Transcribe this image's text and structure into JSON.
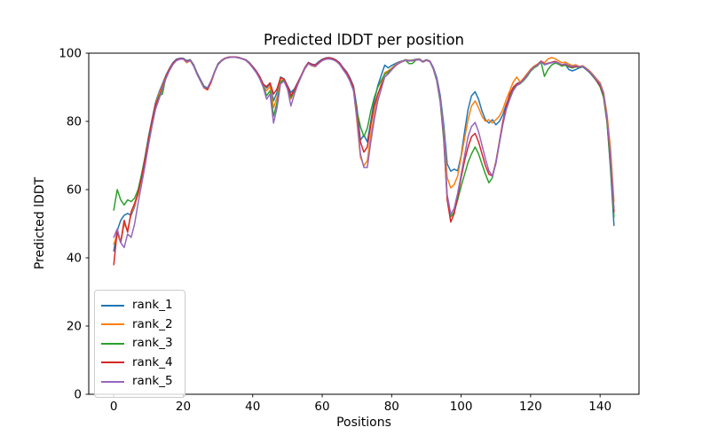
{
  "chart_data": {
    "type": "line",
    "title": "Predicted lDDT per position",
    "xlabel": "Positions",
    "ylabel": "Predicted lDDT",
    "xlim": [
      -7.2,
      151.2
    ],
    "ylim": [
      0,
      100
    ],
    "xticks": [
      0,
      20,
      40,
      60,
      80,
      100,
      120,
      140
    ],
    "yticks": [
      0,
      20,
      40,
      60,
      80,
      100
    ],
    "grid": false,
    "legend_position": "lower-left",
    "x_start": 0,
    "x_step": 1,
    "n_positions": 145,
    "series": [
      {
        "name": "rank_1",
        "color": "#1f77b4",
        "values": [
          42,
          48,
          51,
          52.5,
          53,
          52.5,
          55,
          59,
          64,
          69.5,
          75.5,
          80.5,
          85.5,
          88.5,
          91,
          93.5,
          95.5,
          97.2,
          98.2,
          98.5,
          98.5,
          97.8,
          98.1,
          96.6,
          94.2,
          92.2,
          90.3,
          89.8,
          91.8,
          94.6,
          96.9,
          97.9,
          98.5,
          98.8,
          98.9,
          98.9,
          98.7,
          98.4,
          98.1,
          97.3,
          96.1,
          94.8,
          93.2,
          91,
          89.8,
          91,
          86,
          88.5,
          93,
          92.5,
          90.5,
          88.5,
          89.5,
          91.5,
          93.5,
          95.8,
          97.3,
          96.8,
          96.6,
          97.5,
          98.2,
          98.6,
          98.7,
          98.5,
          98,
          97.2,
          95.8,
          94.6,
          92.8,
          90.3,
          84,
          74.5,
          76,
          74,
          80,
          86,
          90.5,
          93.5,
          96.5,
          95.7,
          96.4,
          96.9,
          97.4,
          97.7,
          98.1,
          97.9,
          98,
          98.2,
          98.3,
          97.6,
          98.1,
          97.7,
          95.8,
          92.8,
          87.5,
          79,
          67.5,
          65.4,
          66,
          65.5,
          70,
          77,
          83.5,
          87.5,
          88.7,
          86.5,
          83,
          80.5,
          79.5,
          80.5,
          79,
          80,
          82,
          85,
          87.5,
          89.5,
          91,
          91.5,
          92,
          93.2,
          94.8,
          95.8,
          96.4,
          97.5,
          96.6,
          96.9,
          97.2,
          97.5,
          97,
          96.4,
          96.7,
          95.2,
          94.8,
          95.2,
          95.7,
          96,
          95.2,
          94.3,
          93.1,
          91.8,
          90.2,
          87.5,
          80,
          66,
          49.5
        ]
      },
      {
        "name": "rank_2",
        "color": "#ff7f0e",
        "values": [
          44,
          47,
          44.5,
          50,
          48,
          53,
          55.5,
          58.5,
          63.5,
          69,
          75,
          80,
          85,
          88,
          90.5,
          93.2,
          95.3,
          97,
          98,
          98.3,
          98.2,
          97.2,
          97.8,
          96.2,
          93.8,
          91.8,
          89.8,
          89.2,
          91.4,
          94.3,
          96.6,
          97.7,
          98.4,
          98.7,
          98.8,
          98.8,
          98.6,
          98.3,
          97.9,
          97,
          95.8,
          94.4,
          92.7,
          90.4,
          89,
          90.3,
          84,
          87,
          92.2,
          92,
          89.8,
          86.5,
          88.8,
          91,
          93.3,
          95.5,
          96.9,
          96.3,
          96,
          97,
          97.9,
          98.3,
          98.4,
          98.2,
          97.7,
          96.8,
          95.3,
          94,
          92,
          89.5,
          80,
          69.5,
          67,
          68.5,
          76,
          82,
          87.5,
          91,
          94.3,
          94.8,
          95.6,
          96.5,
          97.2,
          97.6,
          98,
          97.8,
          97.9,
          98.1,
          98.2,
          97.5,
          98,
          97.6,
          95.5,
          92.2,
          86.5,
          77,
          63.5,
          60.5,
          61.5,
          64,
          69.5,
          75,
          80.5,
          84.5,
          86,
          84,
          81.5,
          80,
          80.5,
          79.5,
          80.5,
          81.5,
          83.5,
          86.5,
          89,
          91.5,
          93,
          91.5,
          92.7,
          94,
          95.3,
          96.2,
          96.8,
          97.6,
          97.2,
          98.3,
          98.7,
          98.4,
          97.8,
          97.2,
          97.4,
          96.8,
          96.4,
          96.6,
          96.1,
          96.3,
          95.6,
          94.8,
          93.7,
          92.5,
          91.3,
          88.5,
          82,
          72,
          56.5
        ]
      },
      {
        "name": "rank_3",
        "color": "#2ca02c",
        "values": [
          54,
          60,
          57,
          55.5,
          57,
          56.5,
          57.5,
          60,
          64.5,
          69.5,
          75,
          80,
          84.5,
          87.5,
          88,
          93,
          95,
          96.8,
          97.9,
          98.3,
          98.4,
          97.6,
          98,
          96.4,
          94,
          92,
          90.1,
          89.6,
          91.6,
          94.4,
          96.7,
          97.8,
          98.4,
          98.8,
          98.9,
          98.9,
          98.7,
          98.4,
          98,
          97.1,
          95.9,
          94.6,
          92.9,
          90.6,
          87.5,
          89,
          81.5,
          85.5,
          91.5,
          92.2,
          90,
          87,
          89,
          91.2,
          93.4,
          95.6,
          97.1,
          96.6,
          96.3,
          97.2,
          98,
          98.4,
          98.5,
          98.3,
          97.8,
          97,
          95.5,
          94.3,
          92.4,
          90,
          83,
          78.5,
          75.5,
          78,
          83,
          87,
          90,
          92,
          93.8,
          94.5,
          95.3,
          96.3,
          97,
          97.5,
          97.9,
          96.9,
          97,
          98,
          98.1,
          97.4,
          97.9,
          97.5,
          95.3,
          91.8,
          85.5,
          74.5,
          57.5,
          52,
          53.5,
          57,
          61,
          64.5,
          68,
          70.5,
          72.5,
          70.5,
          67.5,
          64.5,
          62,
          63.5,
          68,
          74,
          79.5,
          84,
          87.5,
          89.5,
          90.5,
          91,
          92,
          93.3,
          94.7,
          95.7,
          96.3,
          97.4,
          93.2,
          95.2,
          96.5,
          97.1,
          96.8,
          96.2,
          96.5,
          96,
          95.7,
          96,
          95.8,
          96.1,
          95.3,
          94.4,
          93.2,
          91.9,
          90.1,
          87,
          79.5,
          67,
          52
        ]
      },
      {
        "name": "rank_4",
        "color": "#d62728",
        "values": [
          38,
          48,
          44.5,
          51,
          47.5,
          53.5,
          56,
          59,
          63.5,
          69,
          74.5,
          80,
          84.8,
          87,
          90,
          93,
          95.2,
          96.9,
          98,
          98.4,
          98.4,
          97.5,
          98,
          96.3,
          93.9,
          91.9,
          89.9,
          89.4,
          91.5,
          94.4,
          96.7,
          97.8,
          98.5,
          98.8,
          98.9,
          98.9,
          98.7,
          98.4,
          98,
          97.2,
          96,
          94.7,
          93.1,
          90.9,
          90.2,
          91.3,
          88,
          89.5,
          92.8,
          92.4,
          90.3,
          87.5,
          89.3,
          91.4,
          93.5,
          95.7,
          97.2,
          96.7,
          96.5,
          97.3,
          98.1,
          98.5,
          98.6,
          98.4,
          97.9,
          97.1,
          95.6,
          94.4,
          92.5,
          90,
          82,
          74,
          71,
          72.5,
          79,
          84.5,
          88,
          90.5,
          93,
          94,
          95.1,
          96.2,
          97,
          97.5,
          97.9,
          97.7,
          97.8,
          98,
          98.1,
          97.4,
          97.9,
          97.6,
          95.4,
          92,
          86,
          75.5,
          57,
          50.5,
          53,
          58,
          63.5,
          68.5,
          72.5,
          75.5,
          76.5,
          74,
          70.5,
          67,
          64.5,
          64,
          68,
          74,
          80,
          84.5,
          88,
          90,
          91,
          91.3,
          92.4,
          93.6,
          95,
          96,
          96.6,
          97.7,
          96.8,
          97.1,
          97.3,
          97.6,
          97.2,
          96.5,
          96.8,
          96.2,
          95.9,
          96.1,
          95.9,
          96.2,
          95.4,
          94.5,
          93.4,
          92,
          90.5,
          87.8,
          80.5,
          69,
          53.5
        ]
      },
      {
        "name": "rank_5",
        "color": "#9467bd",
        "values": [
          46,
          48.5,
          44.5,
          43,
          47,
          46,
          50,
          56,
          61.5,
          67,
          73,
          78.5,
          83.5,
          86.5,
          89.5,
          92.5,
          94.8,
          96.6,
          97.8,
          98.2,
          98.3,
          97.4,
          97.9,
          96.2,
          93.8,
          91.8,
          89.8,
          89.9,
          91.9,
          94.5,
          96.6,
          97.7,
          98.4,
          98.7,
          98.8,
          98.8,
          98.6,
          98.3,
          97.9,
          97,
          95.7,
          94.3,
          92.5,
          90.1,
          86.5,
          88,
          79.5,
          84,
          91,
          91.8,
          89.5,
          84.5,
          88,
          90.8,
          93.2,
          95.4,
          96.9,
          96.4,
          96.1,
          97,
          97.8,
          98.2,
          98.3,
          98.1,
          97.6,
          96.7,
          95.2,
          93.8,
          91.8,
          89,
          81,
          70.5,
          66.5,
          66.5,
          74,
          80.5,
          86,
          89.5,
          93,
          93.9,
          95.1,
          96.2,
          97.1,
          97.5,
          97.9,
          97.7,
          97.8,
          98,
          98.1,
          97.4,
          97.9,
          97.5,
          95.5,
          92.1,
          86.2,
          76,
          58.5,
          52.8,
          54.5,
          59,
          64.5,
          70,
          75.5,
          78.5,
          79.7,
          77,
          73,
          69,
          65.5,
          64,
          67.5,
          73.5,
          79,
          83.5,
          86.5,
          89,
          90.5,
          91.2,
          92.2,
          93.5,
          95,
          96,
          96.5,
          97.5,
          96.7,
          97,
          97.2,
          97.4,
          97.1,
          96.6,
          96.9,
          96.4,
          96.1,
          96.3,
          96,
          96.2,
          95.5,
          94.6,
          93.5,
          92.2,
          91,
          88.2,
          81,
          70,
          54.5
        ]
      }
    ]
  }
}
